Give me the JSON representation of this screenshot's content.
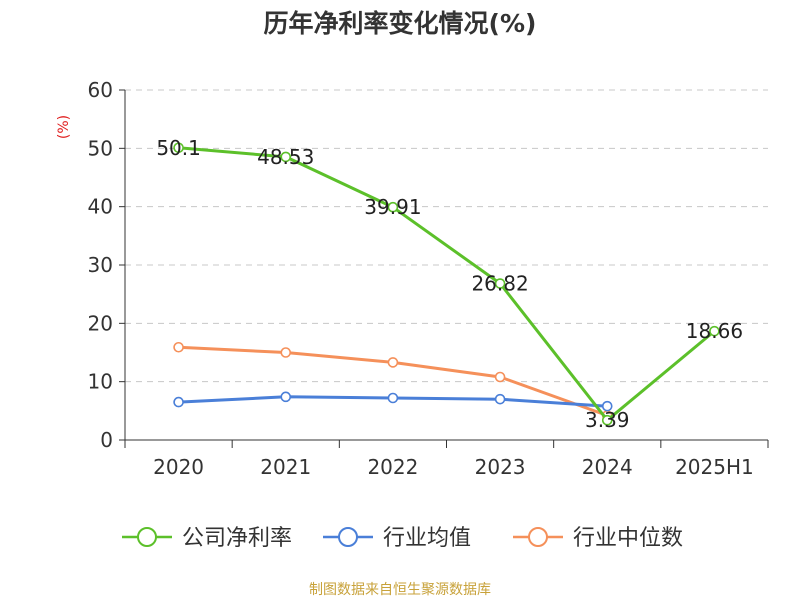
{
  "chart_data": {
    "type": "line",
    "title": "历年净利率变化情况(%)",
    "unit_label": "(%)",
    "categories": [
      "2020",
      "2021",
      "2022",
      "2023",
      "2024",
      "2025H1"
    ],
    "ylim": [
      0,
      60
    ],
    "yticks": [
      0,
      10,
      20,
      30,
      40,
      50,
      60
    ],
    "grid": true,
    "legend_position": "bottom",
    "series": [
      {
        "name": "公司净利率",
        "color": "#5cc02a",
        "values": [
          50.1,
          48.53,
          39.91,
          26.82,
          3.39,
          18.66
        ],
        "labels": [
          "50.1",
          "48.53",
          "39.91",
          "26.82",
          "3.39",
          "18.66"
        ]
      },
      {
        "name": "行业均值",
        "color": "#4a7fd8",
        "values": [
          6.5,
          7.4,
          7.2,
          7.0,
          5.8,
          null
        ]
      },
      {
        "name": "行业中位数",
        "color": "#f5905a",
        "values": [
          15.9,
          15.0,
          13.3,
          10.8,
          4.2,
          null
        ]
      }
    ]
  },
  "footer": {
    "source": "制图数据来自恒生聚源数据库"
  }
}
